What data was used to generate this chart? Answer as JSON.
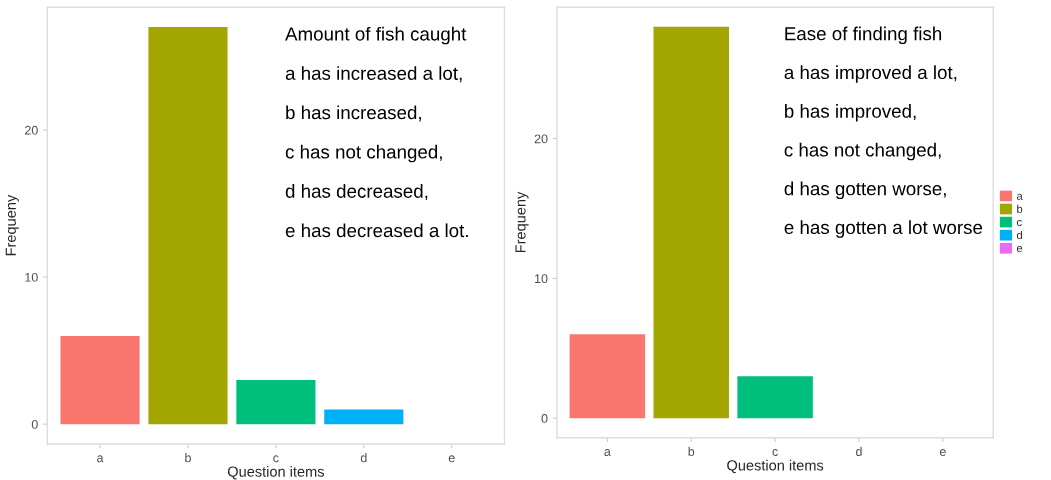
{
  "chart_data": [
    {
      "type": "bar",
      "categories": [
        "a",
        "b",
        "c",
        "d",
        "e"
      ],
      "values": [
        6,
        27,
        3,
        1,
        0
      ],
      "colors": [
        "#f8766d",
        "#a3a500",
        "#00bf7d",
        "#00b0f6",
        "#e76bf3"
      ],
      "xlabel": "Question items",
      "ylabel": "Frequeny",
      "ylim": [
        -1.35,
        28.35
      ],
      "yticks": [
        0,
        10,
        20
      ],
      "grid": false,
      "legend": false,
      "annotations": [
        "Amount of fish caught",
        "a has increased a lot,",
        "b has increased,",
        "c has not changed,",
        "d has decreased,",
        "e has decreased a lot."
      ]
    },
    {
      "type": "bar",
      "categories": [
        "a",
        "b",
        "c",
        "d",
        "e"
      ],
      "series": [
        {
          "name": "a",
          "color": "#f8766d",
          "values": [
            6,
            null,
            null,
            null,
            null
          ]
        },
        {
          "name": "b",
          "color": "#a3a500",
          "values": [
            null,
            28,
            null,
            null,
            null
          ]
        },
        {
          "name": "c",
          "color": "#00bf7d",
          "values": [
            null,
            null,
            3,
            null,
            null
          ]
        },
        {
          "name": "d",
          "color": "#00b0f6",
          "values": [
            null,
            null,
            null,
            0,
            null
          ]
        },
        {
          "name": "e",
          "color": "#e76bf3",
          "values": [
            null,
            null,
            null,
            null,
            0
          ]
        }
      ],
      "xlabel": "Question items",
      "ylabel": "Frequeny",
      "ylim": [
        -1.4,
        29.4
      ],
      "yticks": [
        0,
        10,
        20
      ],
      "grid": false,
      "legend": "right",
      "annotations": [
        "Ease of finding fish",
        "a has improved a lot,",
        "b has improved,",
        "c has not changed,",
        "d has gotten worse,",
        "e has gotten a lot worse"
      ]
    }
  ]
}
